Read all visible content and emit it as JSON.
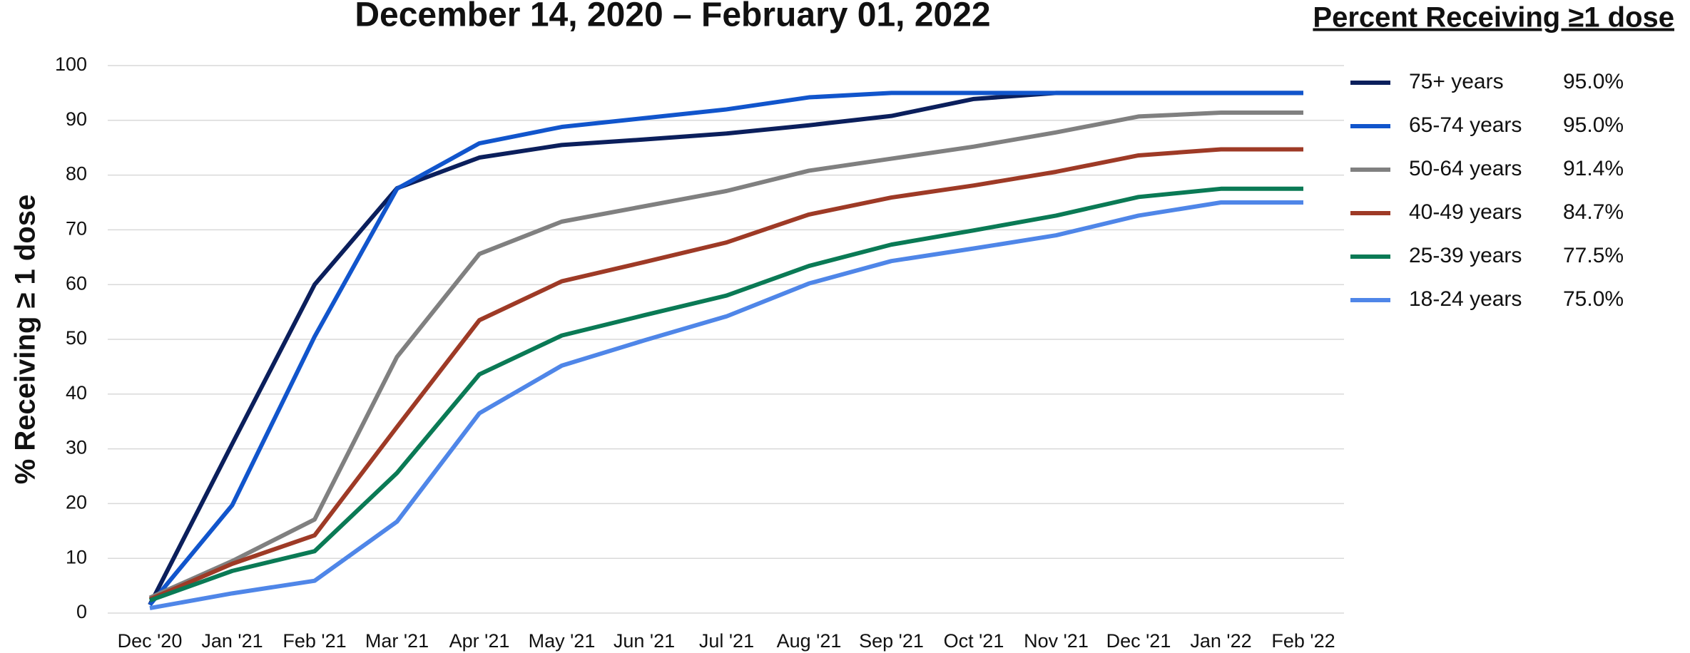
{
  "chart_data": {
    "type": "line",
    "title": "December 14, 2020 – February 01, 2022",
    "y_label": "% Receiving ≥ 1 dose",
    "legend_title": "Percent Receiving ≥1 dose",
    "categories": [
      "Dec '20",
      "Jan '21",
      "Feb '21",
      "Mar '21",
      "Apr '21",
      "May '21",
      "Jun '21",
      "Jul '21",
      "Aug '21",
      "Sep '21",
      "Oct '21",
      "Nov '21",
      "Dec '21",
      "Jan '22",
      "Feb '22"
    ],
    "ylim": [
      0,
      100
    ],
    "yticks": [
      0,
      10,
      20,
      30,
      40,
      50,
      60,
      70,
      80,
      90,
      100
    ],
    "grid": true,
    "legend_position": "right",
    "series": [
      {
        "name": "75+ years",
        "color": "#0b1f5c",
        "legend_label": "95.0%",
        "values": [
          1.5,
          30.9,
          60,
          77.6,
          83.2,
          85.5,
          86.5,
          87.6,
          89.1,
          90.8,
          93.9,
          95,
          95,
          95,
          95
        ]
      },
      {
        "name": "65-74 years",
        "color": "#1155cc",
        "legend_label": "95.0%",
        "values": [
          1.5,
          19.7,
          50.5,
          77.5,
          85.8,
          88.8,
          90.4,
          92,
          94.2,
          95,
          95,
          95,
          95,
          95,
          95
        ]
      },
      {
        "name": "50-64 years",
        "color": "#808080",
        "legend_label": "91.4%",
        "values": [
          2.8,
          9.5,
          17.1,
          46.8,
          65.6,
          71.5,
          74.3,
          77.1,
          80.8,
          83,
          85.2,
          87.8,
          90.7,
          91.4,
          91.4
        ]
      },
      {
        "name": "40-49 years",
        "color": "#9e3a26",
        "legend_label": "84.7%",
        "values": [
          2.5,
          9,
          14.2,
          34,
          53.5,
          60.6,
          64.1,
          67.7,
          72.8,
          75.9,
          78.1,
          80.6,
          83.6,
          84.7,
          84.7
        ]
      },
      {
        "name": "25-39 years",
        "color": "#0a7a55",
        "legend_label": "77.5%",
        "values": [
          2.3,
          7.7,
          11.3,
          25.6,
          43.6,
          50.7,
          54.4,
          58,
          63.4,
          67.3,
          69.9,
          72.6,
          76,
          77.5,
          77.5
        ]
      },
      {
        "name": "18-24 years",
        "color": "#4f86e8",
        "legend_label": "75.0%",
        "values": [
          0.9,
          3.6,
          5.9,
          16.7,
          36.5,
          45.2,
          49.8,
          54.2,
          60.2,
          64.3,
          66.6,
          69,
          72.6,
          75,
          75
        ]
      }
    ]
  }
}
